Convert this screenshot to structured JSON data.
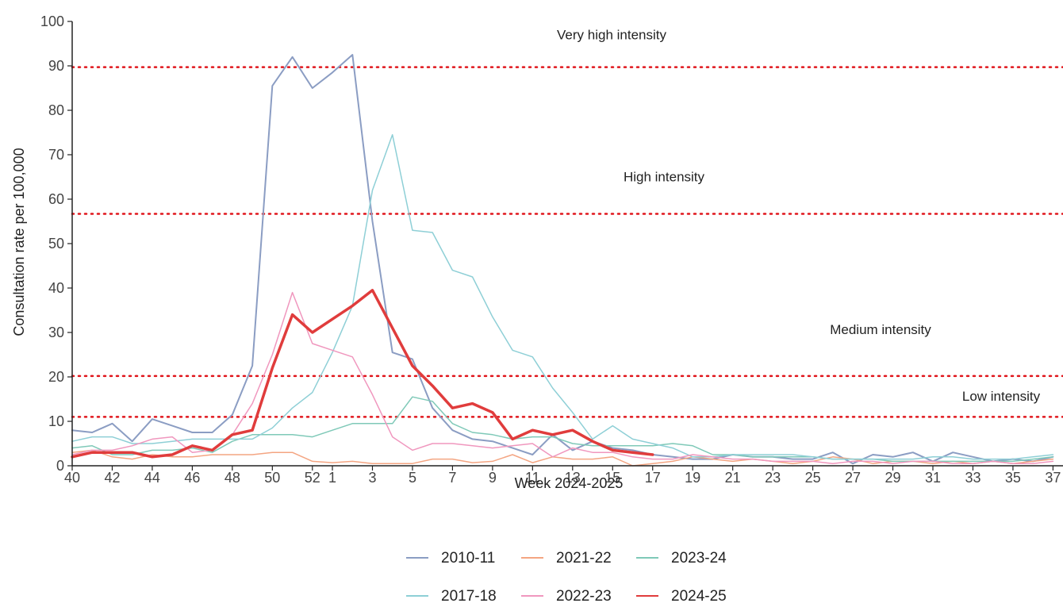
{
  "chart_data": {
    "type": "line",
    "xlabel": "Week 2024-2025",
    "ylabel": "Consultation rate per 100,000",
    "ylim": [
      0,
      100
    ],
    "y_ticks": [
      0,
      10,
      20,
      30,
      40,
      50,
      60,
      70,
      80,
      90,
      100
    ],
    "weeks": [
      40,
      41,
      42,
      43,
      44,
      45,
      46,
      47,
      48,
      49,
      50,
      51,
      52,
      1,
      2,
      3,
      4,
      5,
      6,
      7,
      8,
      9,
      10,
      11,
      12,
      13,
      14,
      15,
      16,
      17,
      18,
      19,
      20,
      21,
      22,
      23,
      24,
      25,
      26,
      27,
      28,
      29,
      30,
      31,
      32,
      33,
      34,
      35,
      36,
      37
    ],
    "x_tick_labels": [
      "40",
      "42",
      "44",
      "46",
      "48",
      "50",
      "52",
      "1",
      "3",
      "5",
      "7",
      "9",
      "11",
      "13",
      "15",
      "17",
      "19",
      "21",
      "23",
      "25",
      "27",
      "29",
      "31",
      "33",
      "35",
      "37"
    ],
    "grid": false,
    "thresholds": [
      {
        "label": "Low intensity",
        "value": 11
      },
      {
        "label": "Medium intensity",
        "value": 20.2
      },
      {
        "label": "High intensity",
        "value": 56.7
      },
      {
        "label": "Very high intensity",
        "value": 89.7
      }
    ],
    "legend_position": "bottom",
    "series": [
      {
        "name": "2010-11",
        "color": "#8b9dc3",
        "width": 2,
        "values": [
          8,
          7.5,
          9.5,
          5.5,
          10.5,
          9,
          7.5,
          7.5,
          11.5,
          22.5,
          85.5,
          92,
          85,
          88.5,
          92.5,
          55,
          25.5,
          24,
          13,
          8,
          6,
          5.5,
          4,
          2.5,
          7,
          3.5,
          5.5,
          4,
          3.5,
          2.5,
          2,
          1.5,
          1.5,
          2.5,
          2,
          2,
          1.5,
          1.5,
          3,
          0.5,
          2.5,
          2,
          3,
          1,
          3,
          2,
          1,
          1.5,
          1,
          2
        ]
      },
      {
        "name": "2021-22",
        "color": "#f4a582",
        "width": 1.5,
        "values": [
          3,
          3.5,
          2,
          1.5,
          2.5,
          2,
          2,
          2.5,
          2.5,
          2.5,
          3,
          3,
          1,
          0.7,
          1,
          0.5,
          0.5,
          0.5,
          1.5,
          1.5,
          0.7,
          1,
          2.5,
          0.7,
          2,
          1.5,
          1.5,
          2,
          0,
          0.5,
          1,
          2,
          1.5,
          1,
          1.5,
          1,
          0.5,
          1,
          2,
          1.5,
          0.5,
          1,
          1,
          0.5,
          1,
          0.5,
          1,
          0.5,
          1,
          1.5
        ]
      },
      {
        "name": "2023-24",
        "color": "#7fc9b8",
        "width": 1.5,
        "values": [
          4,
          4.5,
          2.5,
          2.5,
          3.5,
          3.5,
          4,
          3,
          5.5,
          7,
          7,
          7,
          6.5,
          8,
          9.5,
          9.5,
          9.5,
          15.5,
          14.5,
          9.5,
          7.5,
          7,
          6,
          6.5,
          6.5,
          5,
          4.5,
          4.5,
          4.5,
          4.5,
          5,
          4.5,
          2.5,
          2.5,
          2,
          2,
          2,
          2,
          1.5,
          1.5,
          1.5,
          1,
          1,
          1,
          1,
          1,
          1,
          1,
          1.5,
          2
        ]
      },
      {
        "name": "2017-18",
        "color": "#8ecfd6",
        "width": 1.5,
        "values": [
          5.5,
          6.5,
          6.5,
          5,
          5,
          5.5,
          6,
          6,
          6,
          6,
          8.5,
          13,
          16.5,
          25.5,
          36,
          62,
          74.5,
          53,
          52.5,
          44,
          42.5,
          33.5,
          26,
          24.5,
          17.5,
          12,
          6,
          9,
          6,
          5,
          4,
          2,
          2,
          2.5,
          2.5,
          2.5,
          2.5,
          2,
          1.5,
          1.5,
          1.5,
          1.5,
          1.5,
          2,
          2,
          1.5,
          1.5,
          1.5,
          2,
          2.5
        ]
      },
      {
        "name": "2022-23",
        "color": "#f097be",
        "width": 1.5,
        "values": [
          2.5,
          3.5,
          3.5,
          4.5,
          6,
          6.5,
          3,
          3.5,
          7,
          14,
          25,
          39,
          27.5,
          26,
          24.5,
          16,
          6.5,
          3.5,
          5,
          5,
          4.5,
          4,
          4.5,
          5,
          2,
          4,
          3,
          3,
          2,
          1.5,
          1.5,
          2.5,
          2,
          1.5,
          1.5,
          1,
          1,
          1,
          0.5,
          1,
          1,
          0.5,
          1,
          1,
          0.5,
          0.5,
          1,
          0.5,
          0.5,
          1
        ]
      },
      {
        "name": "2024-25",
        "color": "#e03c3c",
        "width": 3.5,
        "values": [
          2,
          3,
          3,
          3,
          2,
          2.5,
          4.5,
          3.5,
          7,
          8,
          22,
          34,
          30,
          33,
          36,
          39.5,
          31,
          22.5,
          18,
          13,
          14,
          12,
          6,
          8,
          7,
          8,
          5.5,
          3.5,
          3,
          2.5,
          null,
          null,
          null,
          null,
          null,
          null,
          null,
          null,
          null,
          null,
          null,
          null,
          null,
          null,
          null,
          null,
          null,
          null,
          null,
          null
        ]
      }
    ]
  }
}
